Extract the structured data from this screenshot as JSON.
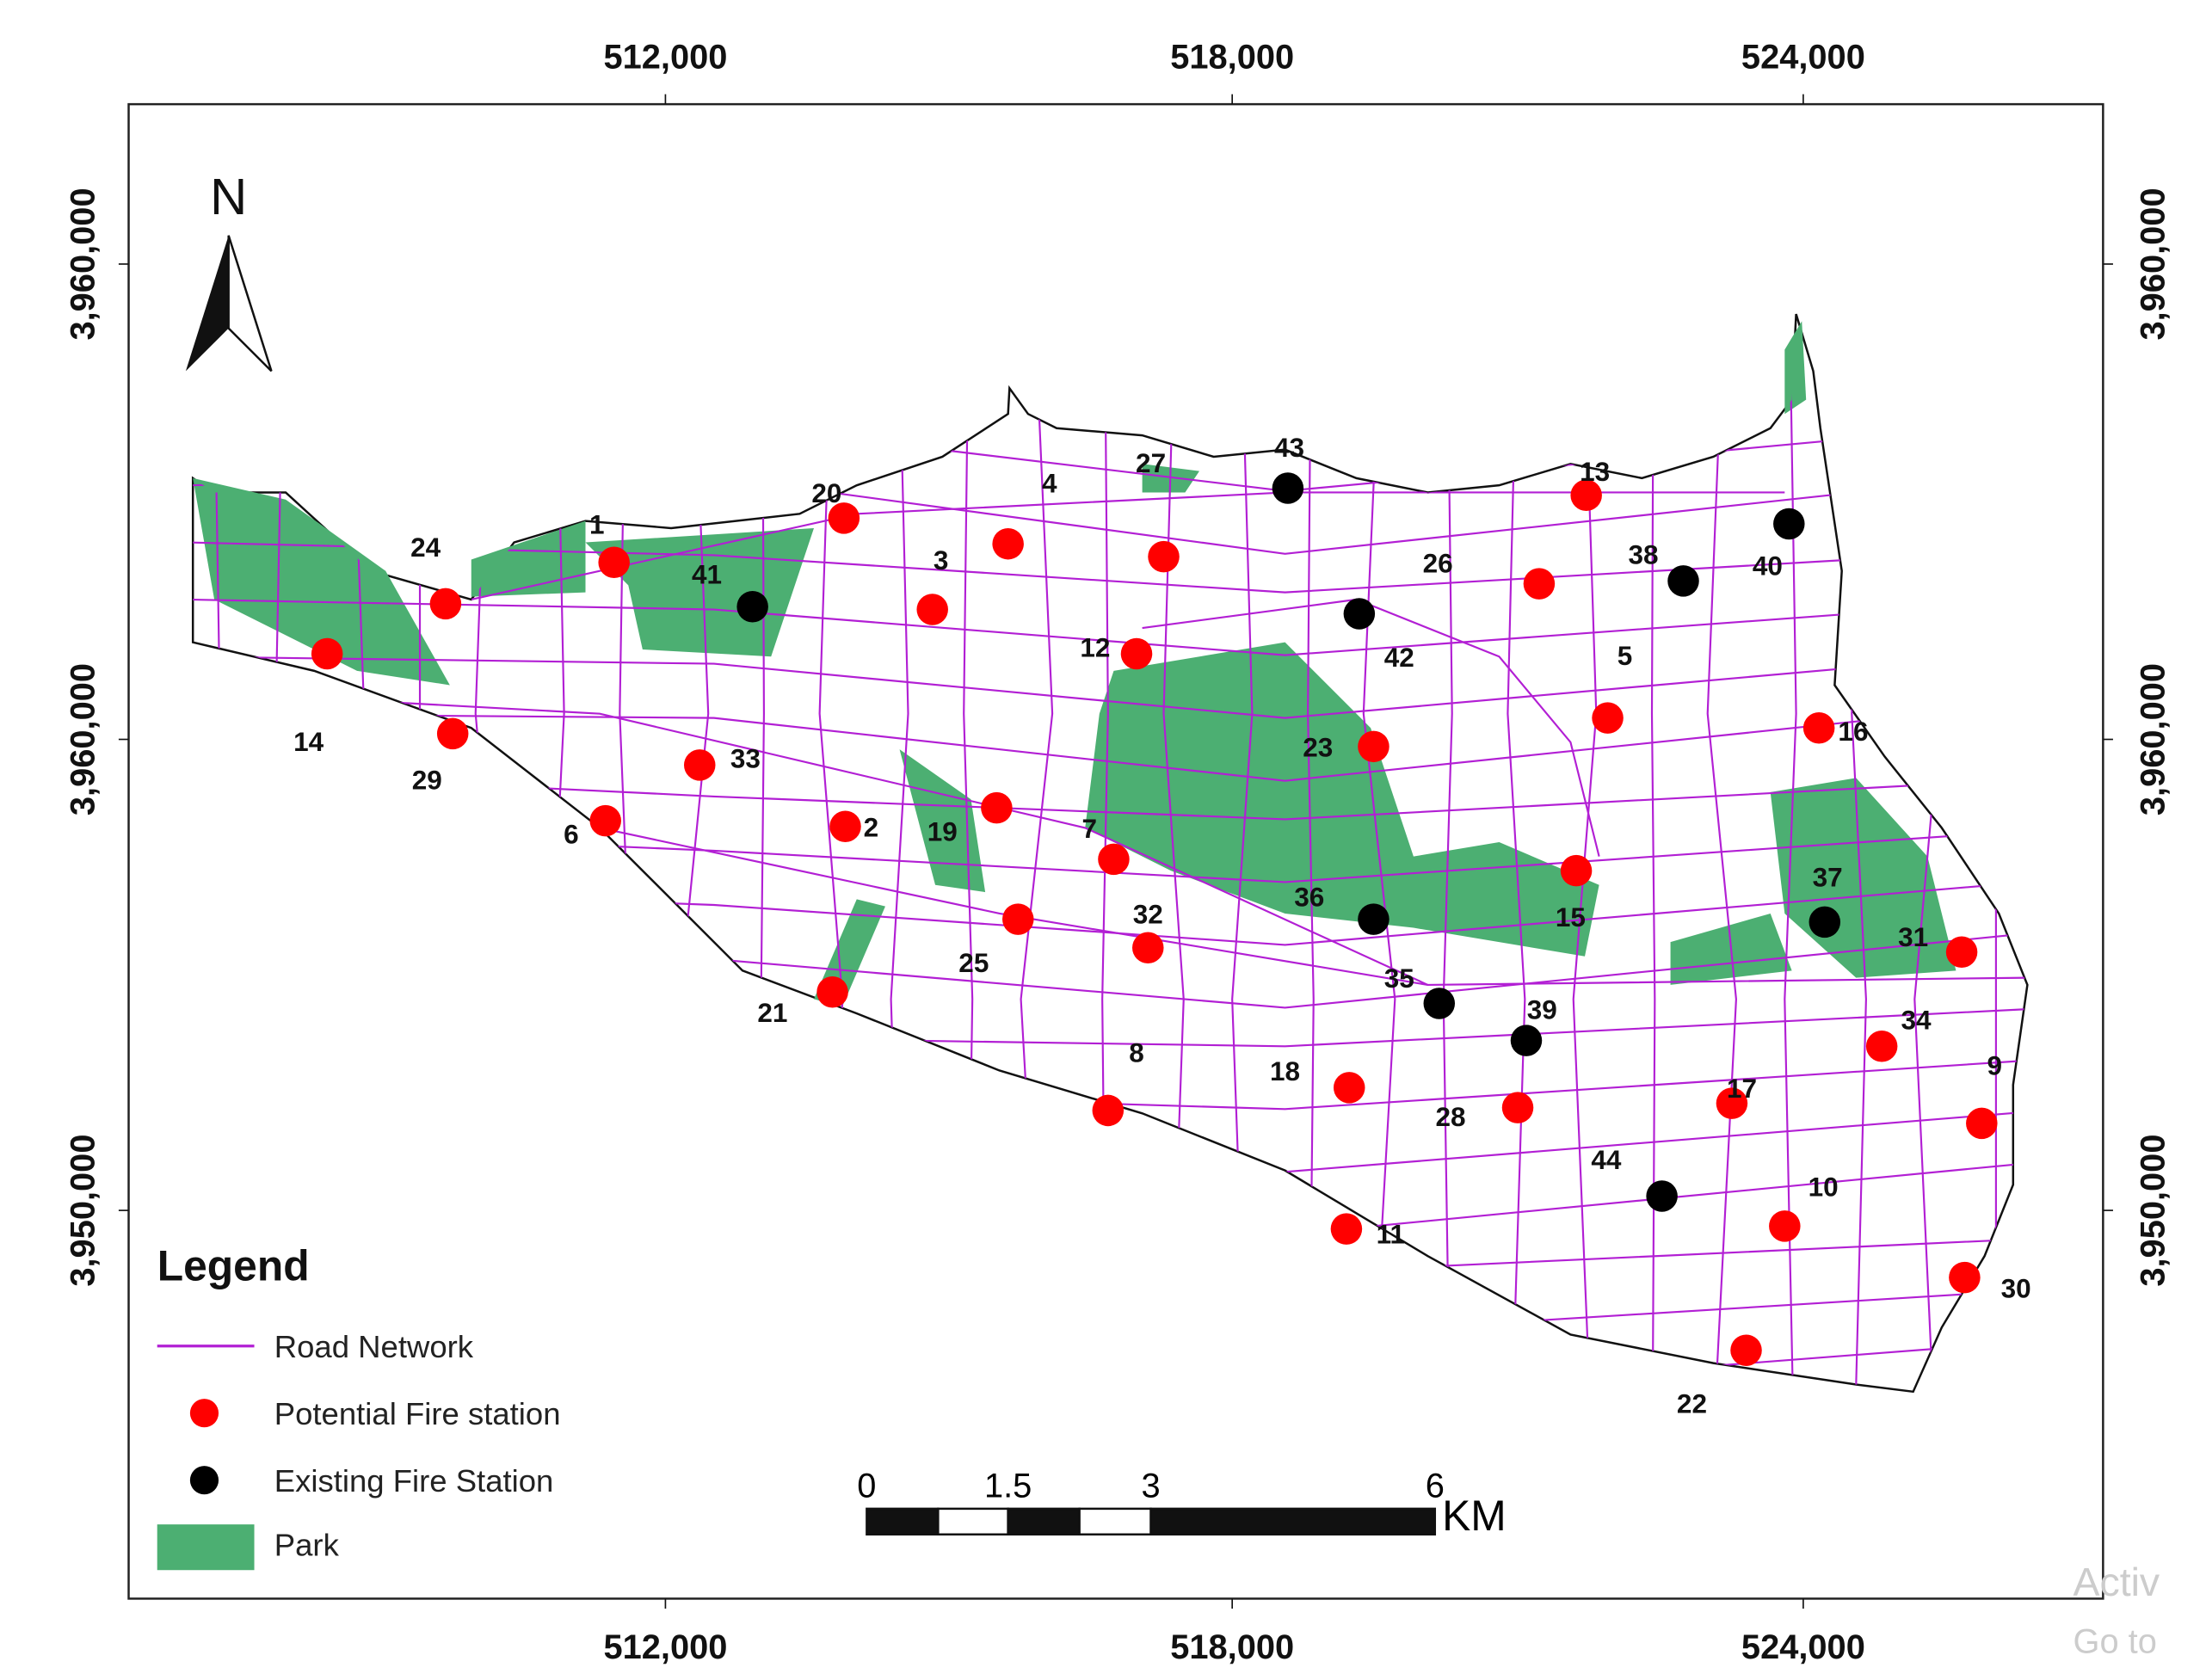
{
  "axes": {
    "x_ticks": [
      "512,000",
      "518,000",
      "524,000"
    ],
    "y_ticks": [
      "3,960,000",
      "3,960,000",
      "3,950,000"
    ]
  },
  "north": "N",
  "stations": {
    "potential": [
      "1",
      "2",
      "3",
      "4",
      "5",
      "6",
      "7",
      "8",
      "9",
      "10",
      "11",
      "12",
      "13",
      "14",
      "15",
      "16",
      "17",
      "18",
      "19",
      "20",
      "21",
      "22",
      "23",
      "24",
      "25",
      "26",
      "27",
      "28",
      "29",
      "30",
      "31",
      "32",
      "33",
      "34"
    ],
    "existing": [
      "35",
      "36",
      "37",
      "38",
      "39",
      "40",
      "41",
      "42",
      "43",
      "44"
    ]
  },
  "legend": {
    "title": "Legend",
    "items": [
      "Road Network",
      "Potential Fire station",
      "Existing Fire Station",
      "Park"
    ]
  },
  "scale_bar": {
    "labels": [
      "0",
      "1.5",
      "3",
      "6"
    ],
    "unit": "KM"
  },
  "watermark": [
    "Activ",
    "Go to"
  ]
}
